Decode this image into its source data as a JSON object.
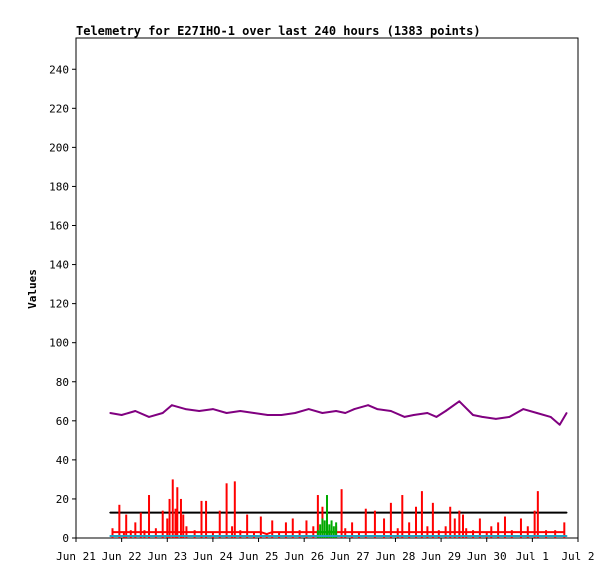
{
  "chart_data": {
    "type": "line",
    "title": "Telemetry for E27IHO-1 over last 240 hours (1383 points)",
    "ylabel": "Values",
    "xlabel": "",
    "x_tick_labels": [
      "Jun 21",
      "Jun 22",
      "Jun 23",
      "Jun 24",
      "Jun 25",
      "Jun 26",
      "Jun 27",
      "Jun 28",
      "Jun 29",
      "Jun 30",
      "Jul 1",
      "Jul 2"
    ],
    "xlim_days": [
      0,
      11
    ],
    "ylim": [
      0,
      256
    ],
    "y_ticks": [
      0,
      20,
      40,
      60,
      80,
      100,
      120,
      140,
      160,
      180,
      200,
      220,
      240
    ],
    "grid": false,
    "legend": "none",
    "data_range_days": [
      0.75,
      10.75
    ],
    "series": [
      {
        "color": "#800080",
        "style": "line",
        "x": [
          0.75,
          1.0,
          1.3,
          1.6,
          1.9,
          2.1,
          2.4,
          2.7,
          3.0,
          3.3,
          3.6,
          3.9,
          4.2,
          4.5,
          4.8,
          5.1,
          5.4,
          5.7,
          5.9,
          6.1,
          6.4,
          6.6,
          6.9,
          7.2,
          7.4,
          7.7,
          7.9,
          8.1,
          8.4,
          8.7,
          8.9,
          9.2,
          9.5,
          9.8,
          10.1,
          10.4,
          10.6,
          10.75
        ],
        "y": [
          64,
          63,
          65,
          62,
          64,
          68,
          66,
          65,
          66,
          64,
          65,
          64,
          63,
          63,
          64,
          66,
          64,
          65,
          64,
          66,
          68,
          66,
          65,
          62,
          63,
          64,
          62,
          65,
          70,
          63,
          62,
          61,
          62,
          66,
          64,
          62,
          58,
          64
        ]
      },
      {
        "color": "#000000",
        "style": "line",
        "x": [
          0.75,
          10.75
        ],
        "y": [
          13,
          13
        ]
      },
      {
        "color": "#ff0000",
        "style": "spikes",
        "x": [
          0.8,
          0.95,
          1.05,
          1.1,
          1.2,
          1.3,
          1.42,
          1.5,
          1.6,
          1.75,
          1.9,
          2.0,
          2.05,
          2.12,
          2.18,
          2.22,
          2.3,
          2.35,
          2.42,
          2.6,
          2.75,
          2.85,
          3.0,
          3.15,
          3.3,
          3.42,
          3.48,
          3.6,
          3.75,
          3.9,
          4.05,
          4.18,
          4.3,
          4.45,
          4.6,
          4.75,
          4.9,
          5.05,
          5.2,
          5.3,
          5.4,
          5.55,
          5.7,
          5.82,
          5.9,
          6.05,
          6.2,
          6.35,
          6.55,
          6.75,
          6.9,
          7.05,
          7.15,
          7.3,
          7.45,
          7.58,
          7.7,
          7.82,
          7.95,
          8.1,
          8.2,
          8.3,
          8.4,
          8.48,
          8.55,
          8.7,
          8.85,
          9.0,
          9.1,
          9.25,
          9.4,
          9.55,
          9.75,
          9.9,
          10.05,
          10.12,
          10.3,
          10.5,
          10.7
        ],
        "y": [
          5,
          17,
          3,
          12,
          4,
          8,
          13,
          4,
          22,
          5,
          14,
          10,
          20,
          30,
          15,
          26,
          20,
          12,
          6,
          4,
          19,
          19,
          3,
          14,
          28,
          6,
          29,
          4,
          12,
          3,
          11,
          2,
          9,
          3,
          8,
          10,
          4,
          9,
          6,
          22,
          16,
          4,
          6,
          25,
          5,
          8,
          3,
          15,
          14,
          10,
          18,
          5,
          22,
          8,
          16,
          24,
          6,
          18,
          4,
          6,
          16,
          10,
          14,
          12,
          5,
          4,
          10,
          3,
          6,
          8,
          11,
          4,
          10,
          6,
          14,
          24,
          4,
          4,
          8
        ]
      },
      {
        "color": "#00aa00",
        "style": "spikes",
        "x": [
          5.3,
          5.35,
          5.4,
          5.45,
          5.5,
          5.55,
          5.6,
          5.65,
          5.7
        ],
        "y": [
          4,
          7,
          10,
          9,
          22,
          7,
          9,
          6,
          8
        ]
      },
      {
        "color": "#20a0c0",
        "style": "line",
        "x": [
          0.75,
          10.75
        ],
        "y": [
          1,
          1
        ]
      }
    ]
  }
}
